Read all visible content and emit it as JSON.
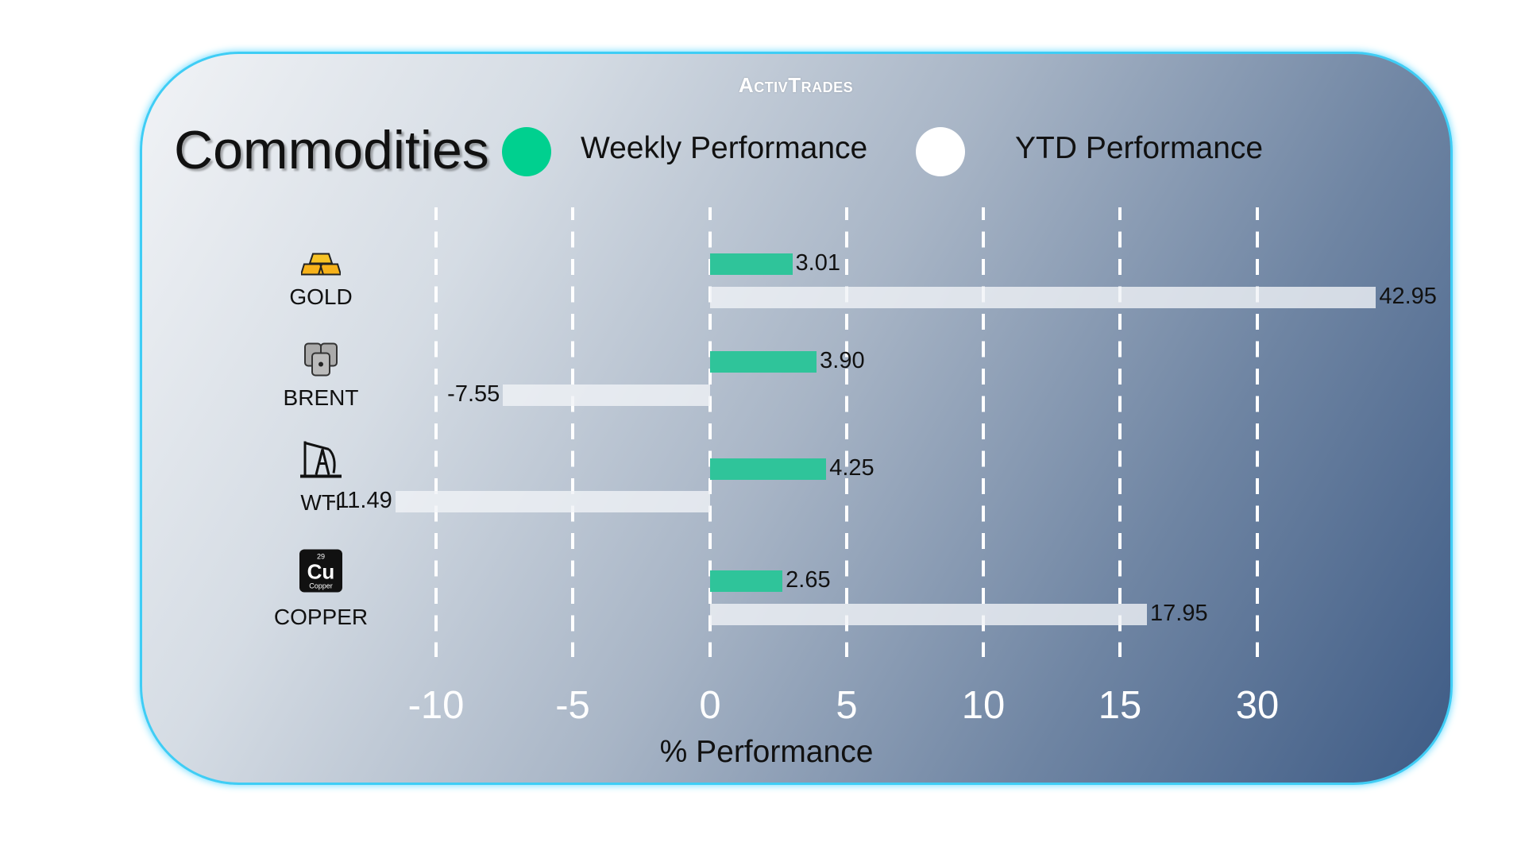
{
  "brand": "ActivTrades",
  "title": "Commodities",
  "legend": [
    {
      "label": "Weekly Performance",
      "color": "#00d08f"
    },
    {
      "label": "YTD Performance",
      "color": "#ffffff"
    }
  ],
  "chart_data": {
    "type": "bar",
    "orientation": "horizontal",
    "categories": [
      "GOLD",
      "BRENT",
      "WTI",
      "COPPER"
    ],
    "icons": [
      "gold-bars-icon",
      "oil-barrels-icon",
      "oil-pump-icon",
      "copper-element-icon"
    ],
    "series": [
      {
        "name": "Weekly Performance",
        "color": "#2fc49a",
        "values": [
          3.01,
          3.9,
          4.25,
          2.65
        ],
        "labels": [
          "3.01",
          "3.90",
          "4.25",
          "2.65"
        ]
      },
      {
        "name": "YTD Performance",
        "color": "#e8ecf0",
        "values": [
          42.95,
          -7.55,
          -11.49,
          17.95
        ],
        "labels": [
          "42.95",
          "-7.55",
          "-11.49",
          "17.95"
        ]
      }
    ],
    "xticks": [
      -10,
      -5,
      0,
      5,
      10,
      15,
      30
    ],
    "xtick_labels": [
      "-10",
      "-5",
      "0",
      "5",
      "10",
      "15",
      "30"
    ],
    "xlabel": "% Performance",
    "grid": "vertical dashed",
    "legend_position": "top"
  }
}
